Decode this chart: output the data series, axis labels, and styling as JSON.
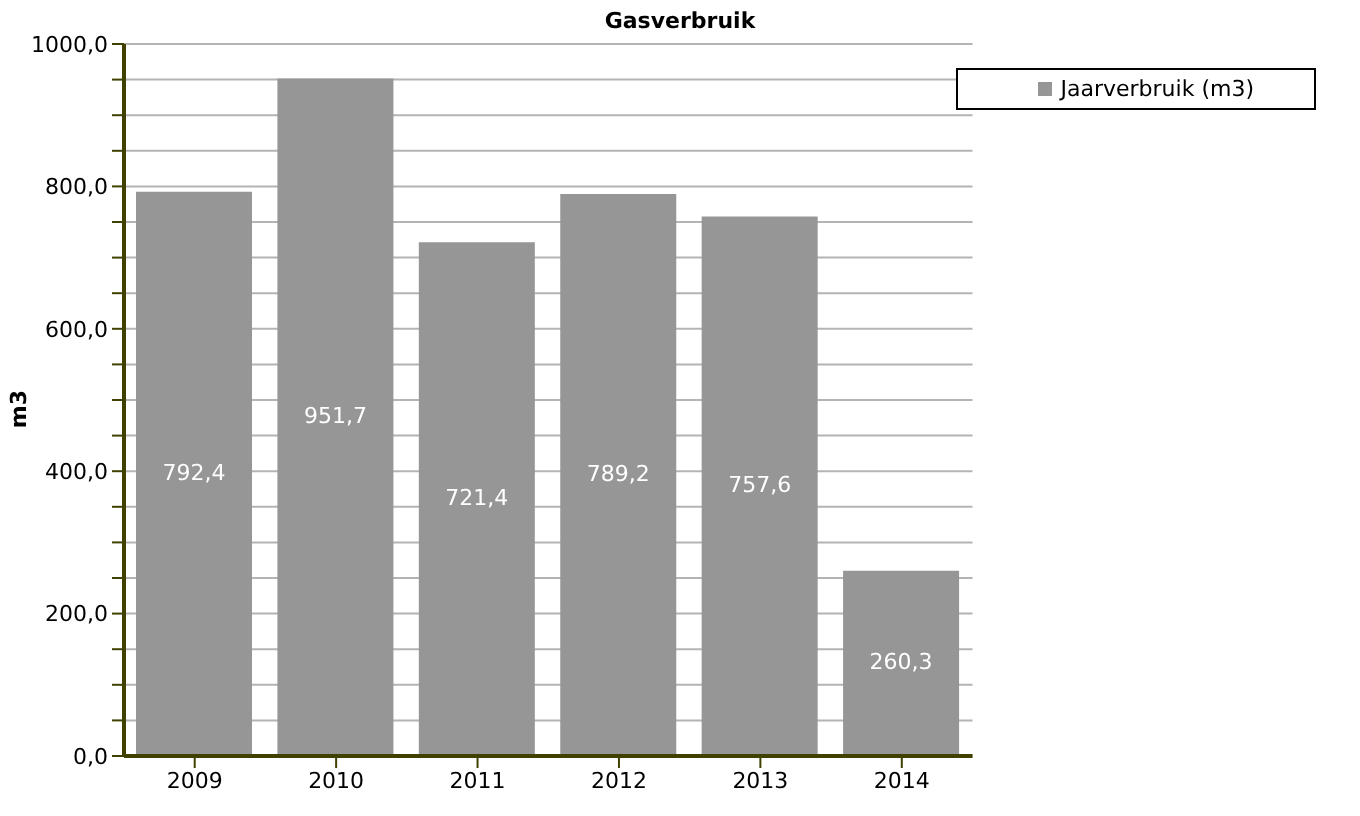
{
  "chart_data": {
    "type": "bar",
    "title": "Gasverbruik",
    "ylabel": "m3",
    "categories": [
      "2009",
      "2010",
      "2011",
      "2012",
      "2013",
      "2014"
    ],
    "series": [
      {
        "name": "Jaarverbruik (m3)",
        "color": "#969696",
        "values": [
          792.4,
          951.7,
          721.4,
          789.2,
          757.6,
          260.3
        ],
        "value_labels": [
          "792,4",
          "951,7",
          "721,4",
          "789,2",
          "757,6",
          "260,3"
        ]
      }
    ],
    "ylim": [
      0,
      1000
    ],
    "yticks": [
      {
        "value": 0,
        "label": "0,0"
      },
      {
        "value": 50,
        "label": null
      },
      {
        "value": 100,
        "label": null
      },
      {
        "value": 150,
        "label": null
      },
      {
        "value": 200,
        "label": "200,0"
      },
      {
        "value": 250,
        "label": null
      },
      {
        "value": 300,
        "label": null
      },
      {
        "value": 350,
        "label": null
      },
      {
        "value": 400,
        "label": "400,0"
      },
      {
        "value": 450,
        "label": null
      },
      {
        "value": 500,
        "label": null
      },
      {
        "value": 550,
        "label": null
      },
      {
        "value": 600,
        "label": "600,0"
      },
      {
        "value": 650,
        "label": null
      },
      {
        "value": 700,
        "label": null
      },
      {
        "value": 750,
        "label": null
      },
      {
        "value": 800,
        "label": "800,0"
      },
      {
        "value": 850,
        "label": null
      },
      {
        "value": 900,
        "label": null
      },
      {
        "value": 950,
        "label": null
      },
      {
        "value": 1000,
        "label": "1000,0"
      }
    ],
    "grid": "y",
    "legend": "top right"
  }
}
